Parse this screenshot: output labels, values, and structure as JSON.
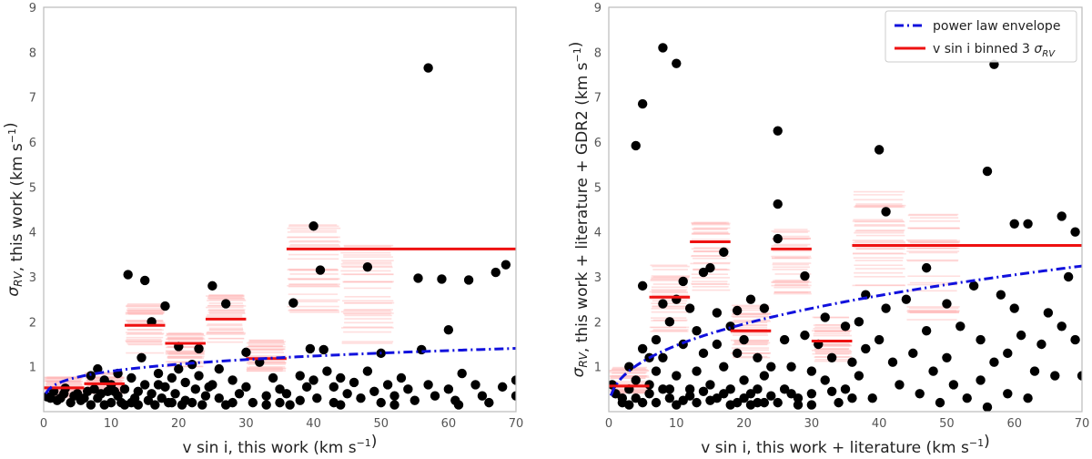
{
  "chart_data": [
    {
      "type": "scatter",
      "xlabel": "v sin i, this work (km s⁻¹)",
      "ylabel": "σRV, this work (km s⁻¹)",
      "xlim": [
        0,
        70
      ],
      "ylim": [
        0,
        9
      ],
      "xticks": [
        0,
        10,
        20,
        30,
        40,
        50,
        60,
        70
      ],
      "yticks": [
        1,
        2,
        3,
        4,
        5,
        6,
        7,
        8,
        9
      ],
      "grid": false,
      "legend": false,
      "colors": {
        "points": "#000000",
        "bins": "#ee1111",
        "envelope": "#1111dd",
        "samples": "#ffb6b6"
      },
      "envelope": {
        "x0": 0.3,
        "coef": 0.53,
        "exp": 0.23,
        "xmax": 70
      },
      "bins": [
        {
          "x0": 0,
          "x1": 6,
          "y": 0.53
        },
        {
          "x0": 6,
          "x1": 12,
          "y": 0.62
        },
        {
          "x0": 12,
          "x1": 18,
          "y": 1.92
        },
        {
          "x0": 18,
          "x1": 24,
          "y": 1.52
        },
        {
          "x0": 24,
          "x1": 30,
          "y": 2.06
        },
        {
          "x0": 30,
          "x1": 36,
          "y": 1.18
        },
        {
          "x0": 36,
          "x1": 70,
          "y": 3.62
        }
      ],
      "points": [
        [
          0.5,
          0.33
        ],
        [
          1.5,
          0.45
        ],
        [
          2.5,
          0.3
        ],
        [
          3.2,
          0.52
        ],
        [
          4,
          0.2
        ],
        [
          5,
          0.4
        ],
        [
          6,
          0.3
        ],
        [
          7,
          0.8
        ],
        [
          7.5,
          0.5
        ],
        [
          8,
          0.95
        ],
        [
          8,
          0.3
        ],
        [
          9,
          0.7
        ],
        [
          9.5,
          0.45
        ],
        [
          10,
          0.6
        ],
        [
          10,
          0.2
        ],
        [
          11,
          0.35
        ],
        [
          11,
          0.85
        ],
        [
          12,
          0.5
        ],
        [
          12.5,
          3.05
        ],
        [
          13,
          0.75
        ],
        [
          13.5,
          0.3
        ],
        [
          14,
          0.45
        ],
        [
          14.5,
          1.2
        ],
        [
          15,
          2.92
        ],
        [
          15,
          0.6
        ],
        [
          16,
          2.0
        ],
        [
          16,
          0.4
        ],
        [
          17,
          0.85
        ],
        [
          17.5,
          0.3
        ],
        [
          18,
          2.35
        ],
        [
          18,
          0.55
        ],
        [
          19,
          0.75
        ],
        [
          19.5,
          0.4
        ],
        [
          20,
          1.45
        ],
        [
          20,
          0.95
        ],
        [
          21,
          0.65
        ],
        [
          21,
          0.25
        ],
        [
          22,
          1.05
        ],
        [
          22.5,
          0.5
        ],
        [
          23,
          1.4
        ],
        [
          23,
          0.8
        ],
        [
          24,
          0.35
        ],
        [
          25,
          2.8
        ],
        [
          25,
          0.6
        ],
        [
          26,
          0.95
        ],
        [
          26,
          0.3
        ],
        [
          27,
          2.4
        ],
        [
          28,
          0.7
        ],
        [
          28,
          0.2
        ],
        [
          29,
          0.4
        ],
        [
          30,
          1.32
        ],
        [
          30,
          0.55
        ],
        [
          31,
          0.2
        ],
        [
          32,
          1.1
        ],
        [
          33,
          0.35
        ],
        [
          34,
          0.75
        ],
        [
          35,
          0.5
        ],
        [
          35,
          0.2
        ],
        [
          36,
          0.4
        ],
        [
          37,
          2.42
        ],
        [
          38,
          0.8
        ],
        [
          38,
          0.25
        ],
        [
          39,
          0.55
        ],
        [
          39.5,
          1.4
        ],
        [
          40,
          4.13
        ],
        [
          40,
          0.7
        ],
        [
          40.5,
          0.3
        ],
        [
          41,
          3.15
        ],
        [
          41.5,
          1.38
        ],
        [
          42,
          0.9
        ],
        [
          43,
          0.55
        ],
        [
          43,
          0.2
        ],
        [
          44,
          0.75
        ],
        [
          45,
          0.4
        ],
        [
          46,
          0.65
        ],
        [
          47,
          0.3
        ],
        [
          48,
          3.22
        ],
        [
          48,
          0.9
        ],
        [
          49,
          0.45
        ],
        [
          50,
          1.3
        ],
        [
          50,
          0.2
        ],
        [
          51,
          0.6
        ],
        [
          52,
          0.35
        ],
        [
          53,
          0.75
        ],
        [
          54,
          0.5
        ],
        [
          55,
          0.25
        ],
        [
          55.5,
          2.97
        ],
        [
          56,
          1.38
        ],
        [
          57,
          7.65
        ],
        [
          57,
          0.6
        ],
        [
          58,
          0.35
        ],
        [
          59,
          2.95
        ],
        [
          60,
          0.5
        ],
        [
          60,
          1.82
        ],
        [
          61,
          0.25
        ],
        [
          62,
          0.85
        ],
        [
          63,
          2.93
        ],
        [
          64,
          0.6
        ],
        [
          65,
          0.35
        ],
        [
          66,
          0.2
        ],
        [
          67,
          3.1
        ],
        [
          68,
          0.55
        ],
        [
          68.5,
          3.27
        ],
        [
          70,
          0.7
        ],
        [
          70,
          0.35
        ],
        [
          1,
          0.3
        ],
        [
          2,
          0.25
        ],
        [
          3,
          0.4
        ],
        [
          4.5,
          0.35
        ],
        [
          5.5,
          0.25
        ],
        [
          6.5,
          0.45
        ],
        [
          7,
          0.15
        ],
        [
          8.5,
          0.4
        ],
        [
          9,
          0.15
        ],
        [
          10.5,
          0.45
        ],
        [
          11.5,
          0.2
        ],
        [
          12,
          0.15
        ],
        [
          13,
          0.2
        ],
        [
          14,
          0.15
        ],
        [
          15.5,
          0.25
        ],
        [
          16.5,
          0.15
        ],
        [
          17,
          0.6
        ],
        [
          18.5,
          0.2
        ],
        [
          19,
          0.2
        ],
        [
          20.5,
          0.15
        ],
        [
          22,
          0.2
        ],
        [
          23.5,
          0.15
        ],
        [
          24.5,
          0.55
        ],
        [
          27,
          0.15
        ],
        [
          33,
          0.15
        ],
        [
          36.5,
          0.15
        ],
        [
          44,
          0.15
        ],
        [
          52,
          0.15
        ],
        [
          61.5,
          0.15
        ]
      ],
      "samples": [
        {
          "x0": 12,
          "x1": 18,
          "ymin": 1.3,
          "ymax": 2.4
        },
        {
          "x0": 18,
          "x1": 24,
          "ymin": 1.0,
          "ymax": 1.9
        },
        {
          "x0": 24,
          "x1": 30,
          "ymin": 1.5,
          "ymax": 2.6
        },
        {
          "x0": 30,
          "x1": 36,
          "ymin": 0.9,
          "ymax": 1.6
        },
        {
          "x0": 36,
          "x1": 44,
          "ymin": 2.2,
          "ymax": 4.2
        },
        {
          "x0": 44,
          "x1": 52,
          "ymin": 1.5,
          "ymax": 3.7
        },
        {
          "x0": 0,
          "x1": 6,
          "ymin": 0.3,
          "ymax": 0.8
        },
        {
          "x0": 6,
          "x1": 12,
          "ymin": 0.4,
          "ymax": 0.9
        }
      ]
    },
    {
      "type": "scatter",
      "xlabel": "v sin i, this work + literature (km s⁻¹)",
      "ylabel": "σRV, this work + literature + GDR2 (km s⁻¹)",
      "xlim": [
        0,
        70
      ],
      "ylim": [
        0,
        9
      ],
      "xticks": [
        0,
        10,
        20,
        30,
        40,
        50,
        60,
        70
      ],
      "yticks": [
        1,
        2,
        3,
        4,
        5,
        6,
        7,
        8,
        9
      ],
      "grid": false,
      "legend": {
        "placement": "top-right",
        "entries": [
          {
            "label": "power law envelope",
            "kind": "dashdot",
            "color": "#1111dd"
          },
          {
            "label": "v sin i binned 3 σRV",
            "kind": "line",
            "color": "#ee1111"
          }
        ]
      },
      "colors": {
        "points": "#000000",
        "bins": "#ee1111",
        "envelope": "#1111dd",
        "samples": "#ffb6b6"
      },
      "envelope": {
        "x0": 0.3,
        "coef": 0.58,
        "exp": 0.405,
        "xmax": 70
      },
      "bins": [
        {
          "x0": 0,
          "x1": 6,
          "y": 0.57
        },
        {
          "x0": 6,
          "x1": 12,
          "y": 2.55
        },
        {
          "x0": 12,
          "x1": 18,
          "y": 3.78
        },
        {
          "x0": 18,
          "x1": 24,
          "y": 1.8
        },
        {
          "x0": 24,
          "x1": 30,
          "y": 3.62
        },
        {
          "x0": 30,
          "x1": 36,
          "y": 1.57
        },
        {
          "x0": 36,
          "x1": 70,
          "y": 3.7
        }
      ],
      "points": [
        [
          0.5,
          0.6
        ],
        [
          1,
          0.4
        ],
        [
          2,
          0.3
        ],
        [
          3,
          0.5
        ],
        [
          3,
          1.0
        ],
        [
          4,
          5.92
        ],
        [
          4,
          0.7
        ],
        [
          5,
          6.85
        ],
        [
          5,
          2.8
        ],
        [
          5,
          1.4
        ],
        [
          6,
          1.2
        ],
        [
          6,
          0.6
        ],
        [
          7,
          1.6
        ],
        [
          7,
          0.9
        ],
        [
          8,
          8.1
        ],
        [
          8,
          2.4
        ],
        [
          8,
          1.2
        ],
        [
          9,
          2.0
        ],
        [
          9,
          0.5
        ],
        [
          10,
          7.75
        ],
        [
          10,
          2.5
        ],
        [
          10,
          0.8
        ],
        [
          11,
          2.9
        ],
        [
          11,
          1.5
        ],
        [
          12,
          0.5
        ],
        [
          12,
          2.3
        ],
        [
          13,
          1.8
        ],
        [
          13,
          0.9
        ],
        [
          14,
          3.1
        ],
        [
          14,
          1.3
        ],
        [
          15,
          3.2
        ],
        [
          15,
          0.6
        ],
        [
          16,
          1.5
        ],
        [
          16,
          2.2
        ],
        [
          17,
          3.55
        ],
        [
          17,
          1.0
        ],
        [
          18,
          1.9
        ],
        [
          18,
          0.5
        ],
        [
          19,
          2.25
        ],
        [
          19,
          1.3
        ],
        [
          20,
          0.7
        ],
        [
          20,
          1.6
        ],
        [
          21,
          2.5
        ],
        [
          21,
          0.4
        ],
        [
          22,
          1.2
        ],
        [
          22,
          0.2
        ],
        [
          23,
          2.3
        ],
        [
          23,
          0.8
        ],
        [
          24,
          1.0
        ],
        [
          25,
          6.25
        ],
        [
          25,
          4.62
        ],
        [
          25,
          3.85
        ],
        [
          26,
          1.6
        ],
        [
          26,
          0.5
        ],
        [
          27,
          1.0
        ],
        [
          28,
          0.3
        ],
        [
          29,
          3.02
        ],
        [
          29,
          1.7
        ],
        [
          30,
          0.9
        ],
        [
          30,
          0.4
        ],
        [
          31,
          1.5
        ],
        [
          32,
          2.1
        ],
        [
          32,
          0.7
        ],
        [
          33,
          1.2
        ],
        [
          34,
          0.2
        ],
        [
          35,
          1.9
        ],
        [
          35,
          0.5
        ],
        [
          36,
          1.1
        ],
        [
          37,
          2.0
        ],
        [
          37,
          0.8
        ],
        [
          38,
          2.6
        ],
        [
          38,
          1.4
        ],
        [
          39,
          0.3
        ],
        [
          40,
          5.83
        ],
        [
          40,
          1.6
        ],
        [
          41,
          4.45
        ],
        [
          41,
          2.3
        ],
        [
          42,
          1.1
        ],
        [
          43,
          0.6
        ],
        [
          44,
          2.5
        ],
        [
          45,
          1.3
        ],
        [
          46,
          0.4
        ],
        [
          47,
          3.2
        ],
        [
          47,
          1.8
        ],
        [
          48,
          0.9
        ],
        [
          49,
          0.2
        ],
        [
          50,
          2.4
        ],
        [
          50,
          1.2
        ],
        [
          51,
          0.6
        ],
        [
          52,
          1.9
        ],
        [
          53,
          0.3
        ],
        [
          54,
          2.8
        ],
        [
          55,
          1.6
        ],
        [
          55,
          0.7
        ],
        [
          56,
          5.35
        ],
        [
          56,
          0.1
        ],
        [
          57,
          7.73
        ],
        [
          57,
          1.1
        ],
        [
          58,
          2.6
        ],
        [
          59,
          1.3
        ],
        [
          59,
          0.4
        ],
        [
          60,
          4.18
        ],
        [
          60,
          2.3
        ],
        [
          61,
          1.7
        ],
        [
          62,
          4.18
        ],
        [
          62,
          0.3
        ],
        [
          63,
          0.9
        ],
        [
          64,
          1.5
        ],
        [
          65,
          2.2
        ],
        [
          66,
          0.8
        ],
        [
          67,
          4.35
        ],
        [
          67,
          1.9
        ],
        [
          68,
          3.0
        ],
        [
          69,
          4.0
        ],
        [
          69,
          1.6
        ],
        [
          70,
          0.8
        ],
        [
          2,
          0.2
        ],
        [
          3,
          0.15
        ],
        [
          4,
          0.3
        ],
        [
          5,
          0.2
        ],
        [
          6,
          0.4
        ],
        [
          7,
          0.2
        ],
        [
          8,
          0.5
        ],
        [
          9,
          0.3
        ],
        [
          10,
          0.15
        ],
        [
          11,
          0.25
        ],
        [
          12,
          0.35
        ],
        [
          13,
          0.2
        ],
        [
          14,
          0.45
        ],
        [
          15,
          0.25
        ],
        [
          16,
          0.3
        ],
        [
          17,
          0.4
        ],
        [
          18,
          0.15
        ],
        [
          19,
          0.2
        ],
        [
          20,
          0.3
        ],
        [
          21,
          0.15
        ],
        [
          22,
          0.5
        ],
        [
          23,
          0.2
        ],
        [
          24,
          0.35
        ],
        [
          25,
          0.2
        ],
        [
          27,
          0.4
        ],
        [
          28,
          0.15
        ],
        [
          30,
          0.15
        ],
        [
          33,
          0.45
        ],
        [
          36,
          0.3
        ]
      ],
      "samples": [
        {
          "x0": 0,
          "x1": 6,
          "ymin": 0.4,
          "ymax": 1.0
        },
        {
          "x0": 6,
          "x1": 12,
          "ymin": 1.7,
          "ymax": 3.3
        },
        {
          "x0": 12,
          "x1": 18,
          "ymin": 2.7,
          "ymax": 4.3
        },
        {
          "x0": 18,
          "x1": 24,
          "ymin": 1.2,
          "ymax": 2.4
        },
        {
          "x0": 24,
          "x1": 30,
          "ymin": 2.6,
          "ymax": 4.1
        },
        {
          "x0": 30,
          "x1": 36,
          "ymin": 1.1,
          "ymax": 2.1
        },
        {
          "x0": 36,
          "x1": 44,
          "ymin": 2.8,
          "ymax": 5.0
        },
        {
          "x0": 44,
          "x1": 52,
          "ymin": 1.9,
          "ymax": 4.4
        }
      ]
    }
  ]
}
